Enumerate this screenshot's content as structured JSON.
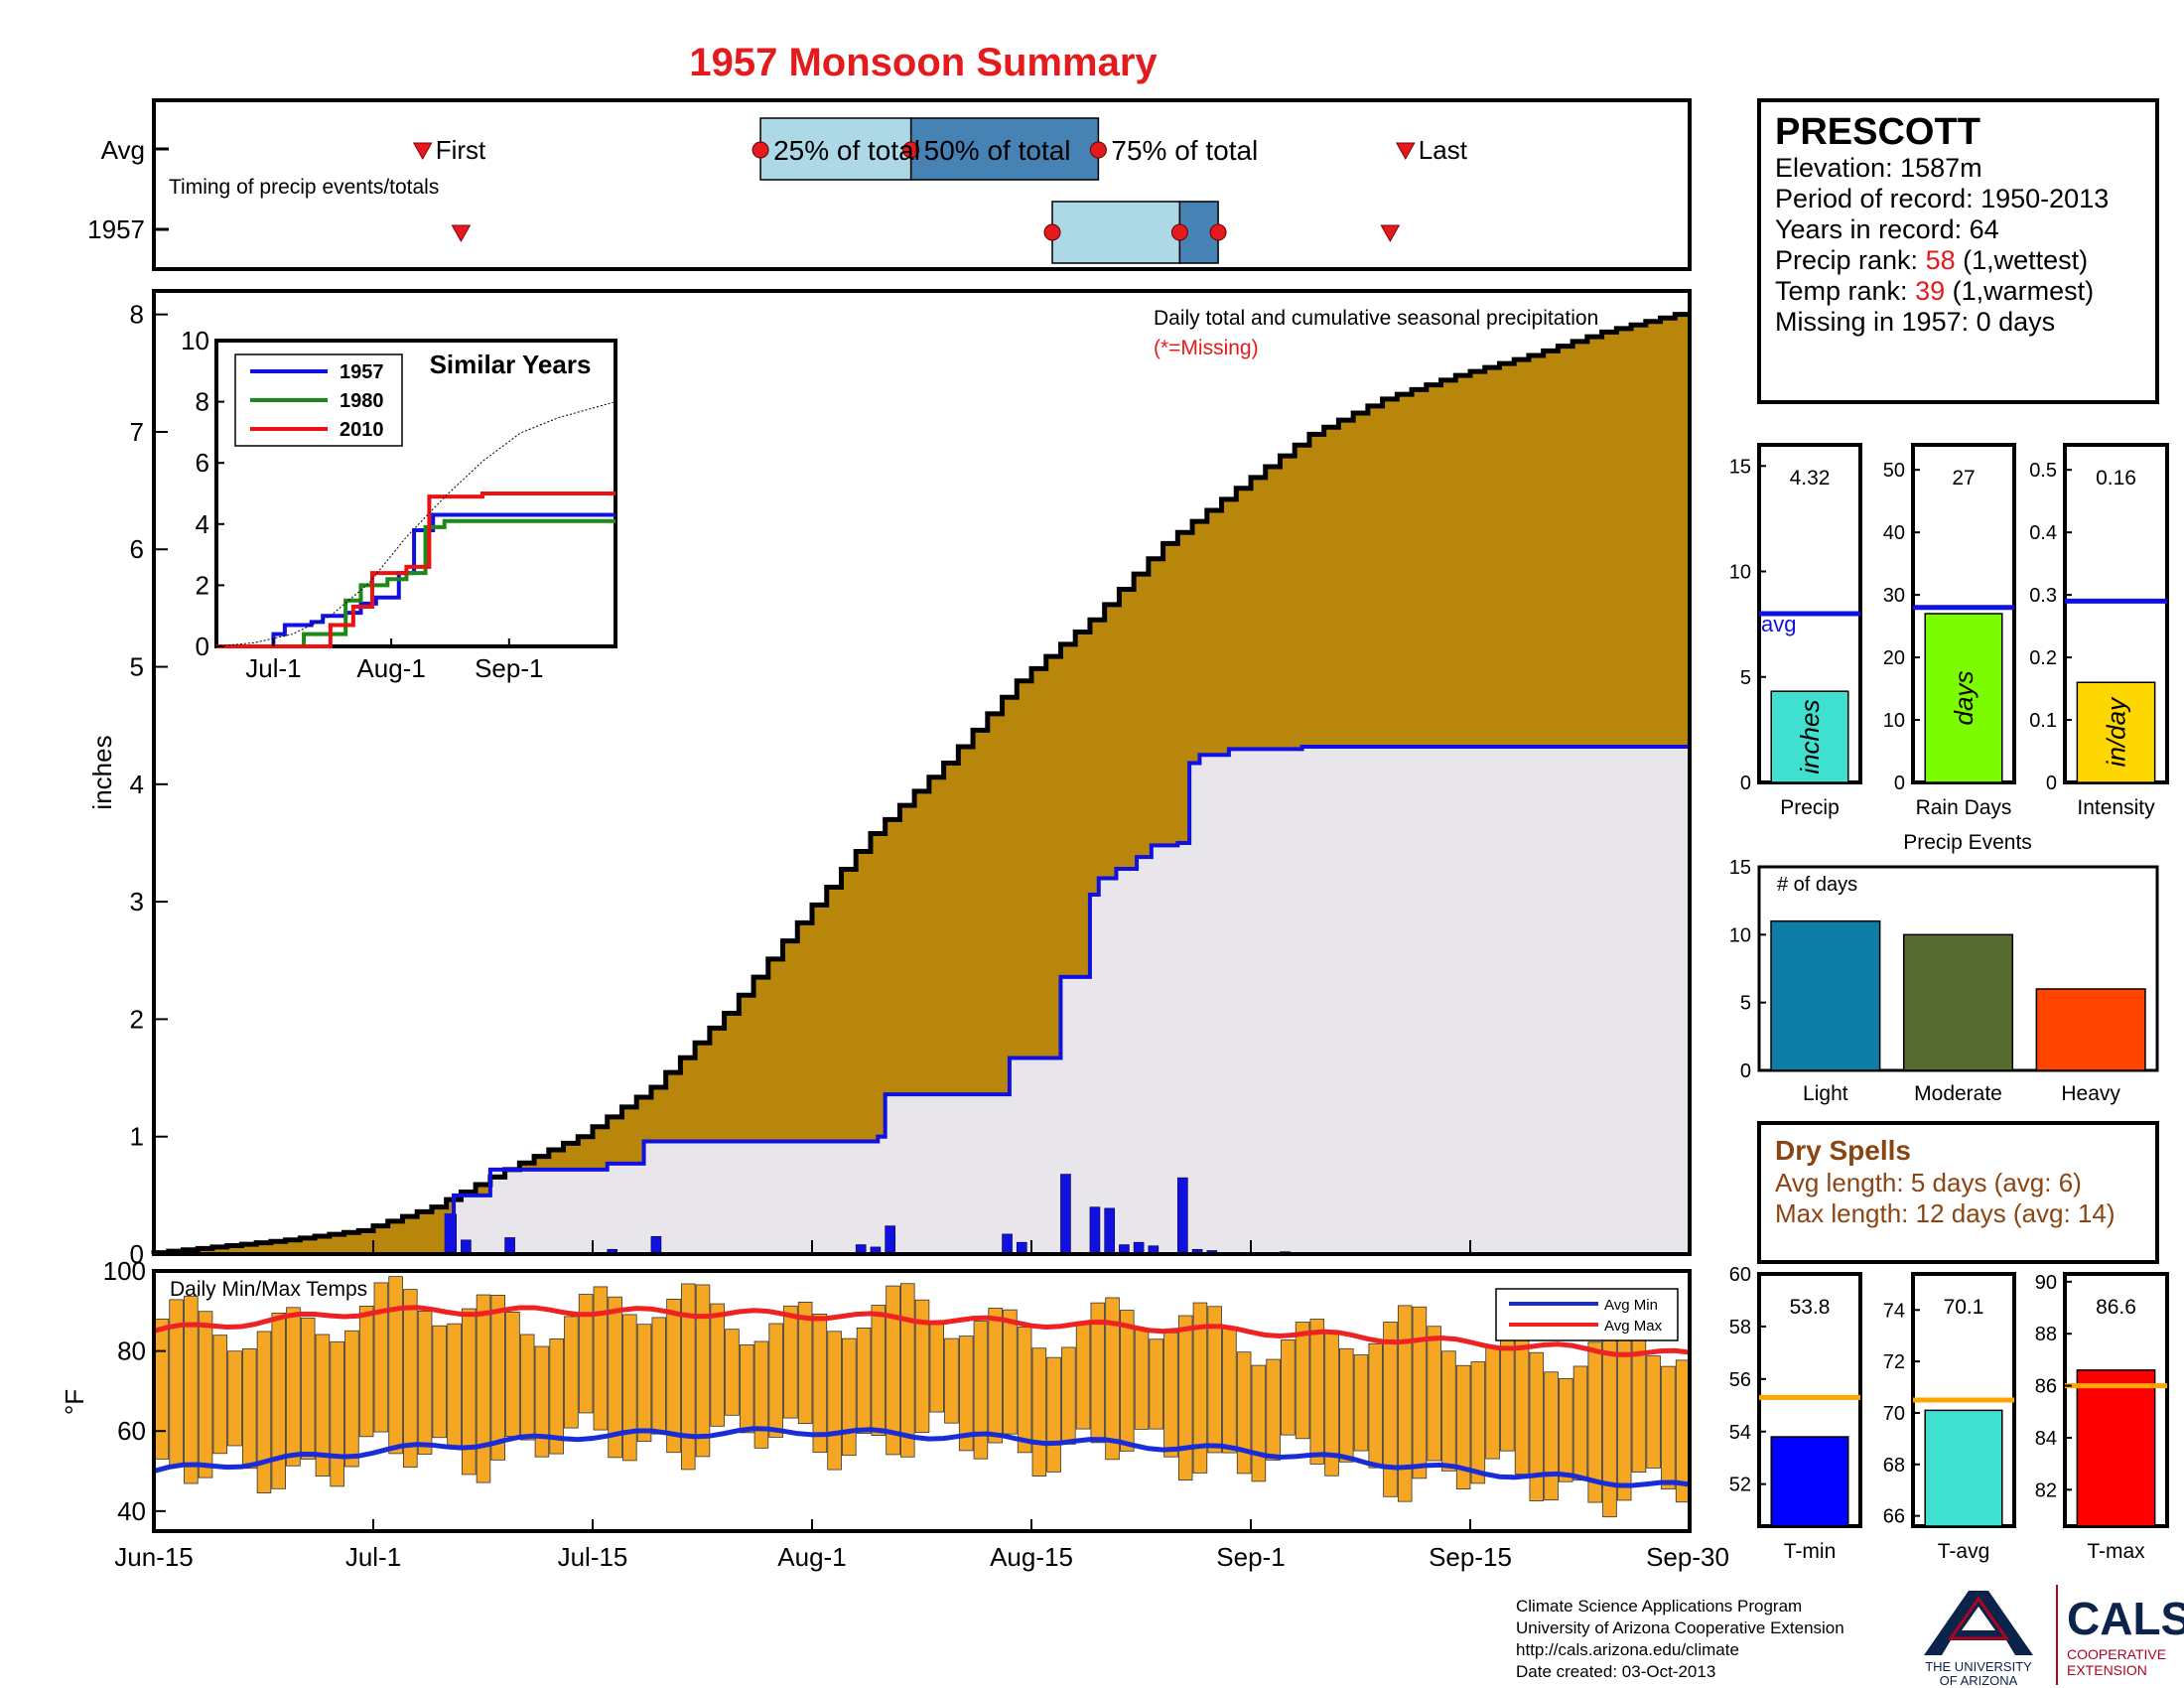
{
  "header": {
    "title": "1957 Monsoon Summary",
    "year": "1957"
  },
  "timing": {
    "row_avg_label": "Avg",
    "row_year_label": "1957",
    "caption": "Timing of precip events/totals",
    "first_label": "First",
    "last_label": "Last",
    "p25_label": "25% of total",
    "p50_label": "50% of total",
    "p75_label": "75% of total",
    "avg": {
      "first": 17.5,
      "p25": 39.5,
      "p50": 49.3,
      "p75": 61.5,
      "last": 81.5
    },
    "year": {
      "first": 20.0,
      "p25": 58.5,
      "p50": 66.8,
      "p75": 69.3,
      "last": 80.5
    }
  },
  "station": {
    "name": "PRESCOTT",
    "elevation": "Elevation: 1587m",
    "period": "Period of record: 1950-2013",
    "years": "Years in record: 64",
    "precip_rank_prefix": "Precip rank: ",
    "precip_rank_value": "58",
    "precip_rank_suffix": " (1,wettest)",
    "temp_rank_prefix": "Temp rank: ",
    "temp_rank_value": "39",
    "temp_rank_suffix": " (1,warmest)",
    "missing": "Missing in 1957: 0 days"
  },
  "dry_spells": {
    "title": "Dry Spells",
    "avg_length": "Avg length: 5 days (avg: 6)",
    "max_length": "Max length: 12 days (avg: 14)"
  },
  "footer": {
    "line1": "Climate Science Applications Program",
    "line2": "University of Arizona Cooperative Extension",
    "line3": "http://cals.arizona.edu/climate",
    "line4": " Date created: 03-Oct-2013",
    "ua_line1": "THE UNIVERSITY",
    "ua_line2": "OF ARIZONA",
    "cals_big": "CALS",
    "cals_line1": "COOPERATIVE",
    "cals_line2": "EXTENSION"
  },
  "colors": {
    "title_red": "#e41a1c",
    "avg_fill": "#b8860b",
    "obs_fill": "#e8e6ea",
    "obs_line": "#1010e0",
    "bar_orange": "#f5a623",
    "max_line": "#ee2222",
    "min_line": "#1a2bd8",
    "brown_text": "#8b4513",
    "ua_navy": "#0c234b",
    "ua_red": "#ab0520"
  },
  "chart_data": [
    {
      "type": "area",
      "id": "main-precip",
      "title": "Daily total and cumulative seasonal precipitation",
      "subtitle": "(*=Missing)",
      "ylabel": "inches",
      "ylim": [
        0,
        8.2
      ],
      "yticks": [
        0,
        1,
        2,
        3,
        4,
        5,
        6,
        7,
        8
      ],
      "x_days": [
        0,
        15,
        30,
        45,
        60,
        75,
        90,
        105
      ],
      "xtick_labels": [
        "Jun-15",
        "Jul-1",
        "Jul-15",
        "Aug-1",
        "Aug-15",
        "Sep-1",
        "Sep-15",
        "Sep-30"
      ],
      "avg_cumulative": {
        "name": "avg",
        "x": [
          0,
          5,
          10,
          15,
          20,
          25,
          30,
          35,
          40,
          45,
          50,
          55,
          60,
          65,
          70,
          75,
          80,
          85,
          90,
          95,
          100,
          105
        ],
        "y": [
          0.0,
          0.06,
          0.12,
          0.2,
          0.4,
          0.72,
          1.0,
          1.42,
          2.05,
          2.82,
          3.58,
          4.18,
          4.88,
          5.4,
          6.05,
          6.52,
          6.98,
          7.28,
          7.48,
          7.65,
          7.85,
          8.0
        ]
      },
      "year_cumulative": {
        "name": "1957",
        "steps": [
          [
            0,
            0.0
          ],
          [
            20,
            0.33
          ],
          [
            20.5,
            0.5
          ],
          [
            23,
            0.72
          ],
          [
            31,
            0.77
          ],
          [
            33.5,
            0.96
          ],
          [
            48.5,
            0.96
          ],
          [
            49.5,
            1.0
          ],
          [
            50,
            1.36
          ],
          [
            57,
            1.36
          ],
          [
            58.5,
            1.67
          ],
          [
            61.5,
            1.67
          ],
          [
            62,
            2.36
          ],
          [
            63.5,
            2.36
          ],
          [
            64,
            3.06
          ],
          [
            64.6,
            3.2
          ],
          [
            65.8,
            3.28
          ],
          [
            67.2,
            3.38
          ],
          [
            68.2,
            3.48
          ],
          [
            70,
            3.5
          ],
          [
            70.8,
            4.18
          ],
          [
            71.5,
            4.25
          ],
          [
            73.5,
            4.3
          ],
          [
            78.5,
            4.3
          ],
          [
            78.5,
            4.32
          ],
          [
            105,
            4.32
          ]
        ]
      },
      "daily_bars": {
        "x": [
          20,
          21,
          24,
          31,
          34,
          48,
          49,
          50,
          58,
          59,
          62,
          64,
          65,
          66,
          67,
          68,
          70,
          71,
          72,
          77
        ],
        "y": [
          0.34,
          0.12,
          0.14,
          0.04,
          0.15,
          0.08,
          0.06,
          0.24,
          0.17,
          0.1,
          0.68,
          0.4,
          0.39,
          0.08,
          0.1,
          0.07,
          0.65,
          0.04,
          0.03,
          0.02
        ]
      },
      "inset": {
        "title": "Similar Years",
        "ylim": [
          0,
          10
        ],
        "yticks": [
          0,
          2,
          4,
          6,
          8,
          10
        ],
        "xtick_labels": [
          "Jul-1",
          "Aug-1",
          "Sep-1"
        ],
        "xtick_days": [
          15,
          46,
          77
        ],
        "legend": [
          "1957",
          "1980",
          "2010"
        ],
        "series": [
          {
            "name": "1957",
            "color": "#1010e0",
            "steps": [
              [
                0,
                0
              ],
              [
                14,
                0.0
              ],
              [
                15,
                0.4
              ],
              [
                18,
                0.7
              ],
              [
                25,
                0.8
              ],
              [
                28,
                1.0
              ],
              [
                34,
                1.1
              ],
              [
                38,
                1.4
              ],
              [
                42,
                1.6
              ],
              [
                48,
                2.4
              ],
              [
                52,
                3.8
              ],
              [
                57,
                4.3
              ],
              [
                70,
                4.3
              ],
              [
                105,
                4.3
              ]
            ]
          },
          {
            "name": "1980",
            "color": "#1a8a1a",
            "steps": [
              [
                0,
                0
              ],
              [
                23,
                0.4
              ],
              [
                32,
                0.4
              ],
              [
                34,
                1.5
              ],
              [
                38,
                2.0
              ],
              [
                45,
                2.2
              ],
              [
                50,
                2.4
              ],
              [
                55,
                3.9
              ],
              [
                60,
                4.1
              ],
              [
                105,
                4.1
              ]
            ]
          },
          {
            "name": "2010",
            "color": "#ee1111",
            "steps": [
              [
                0,
                0
              ],
              [
                30,
                0.7
              ],
              [
                36,
                1.3
              ],
              [
                41,
                2.4
              ],
              [
                50,
                2.6
              ],
              [
                56,
                4.9
              ],
              [
                70,
                5.0
              ],
              [
                105,
                5.0
              ]
            ]
          },
          {
            "name": "avg",
            "color": "#000000",
            "x": [
              0,
              10,
              20,
              30,
              40,
              50,
              60,
              70,
              80,
              90,
              105
            ],
            "y": [
              0,
              0.12,
              0.4,
              1.0,
              2.05,
              3.58,
              4.88,
              6.05,
              6.98,
              7.48,
              8.0
            ]
          }
        ]
      }
    },
    {
      "type": "bar",
      "id": "temps",
      "title": "Daily Min/Max Temps",
      "ylabel": "°F",
      "ylim": [
        35,
        100
      ],
      "yticks": [
        40,
        60,
        80,
        100
      ],
      "legend": [
        "Avg Min",
        "Avg Max"
      ],
      "avg_min": {
        "x": [
          0,
          15,
          30,
          45,
          60,
          75,
          90,
          105
        ],
        "y": [
          50,
          55,
          59,
          60,
          58,
          55,
          50,
          46
        ]
      },
      "avg_max": {
        "x": [
          0,
          15,
          30,
          45,
          60,
          75,
          90,
          105
        ],
        "y": [
          85,
          90,
          90,
          89,
          87,
          85,
          82,
          79
        ]
      }
    },
    {
      "type": "bar",
      "id": "precip-totals",
      "categories": [
        "Precip"
      ],
      "values": [
        4.32
      ],
      "value_label": "4.32",
      "bar_label": "inches",
      "avg": 8.0,
      "avg_label": "avg",
      "ylim": [
        0,
        16
      ],
      "yticks": [
        0,
        5,
        10,
        15
      ],
      "color": "#40e0d0"
    },
    {
      "type": "bar",
      "id": "rain-days",
      "categories": [
        "Rain Days"
      ],
      "values": [
        27
      ],
      "value_label": "27",
      "bar_label": "days",
      "avg": 28,
      "ylim": [
        0,
        54
      ],
      "yticks": [
        0,
        10,
        20,
        30,
        40,
        50
      ],
      "color": "#7cfc00"
    },
    {
      "type": "bar",
      "id": "intensity",
      "categories": [
        "Intensity"
      ],
      "values": [
        0.16
      ],
      "value_label": "0.16",
      "bar_label": "in/day",
      "avg": 0.29,
      "ylim": [
        0,
        0.54
      ],
      "yticks": [
        0,
        0.1,
        0.2,
        0.3,
        0.4,
        0.5
      ],
      "color": "#ffd700"
    },
    {
      "type": "bar",
      "id": "precip-events",
      "title": "Precip Events",
      "ylabel": "# of days",
      "categories": [
        "Light",
        "Moderate",
        "Heavy"
      ],
      "values": [
        11,
        10,
        6
      ],
      "colors": [
        "#0e7ea6",
        "#556b2f",
        "#ff4500"
      ],
      "ylim": [
        0,
        15
      ],
      "yticks": [
        0,
        5,
        10,
        15
      ]
    },
    {
      "type": "bar",
      "id": "t-min",
      "categories": [
        "T-min"
      ],
      "values": [
        53.8
      ],
      "value_label": "53.8",
      "avg": 55.3,
      "ylim": [
        50.4,
        60
      ],
      "yticks": [
        52,
        54,
        56,
        58,
        60
      ],
      "color": "#0000ff"
    },
    {
      "type": "bar",
      "id": "t-avg",
      "categories": [
        "T-avg"
      ],
      "values": [
        70.1
      ],
      "value_label": "70.1",
      "avg": 70.5,
      "ylim": [
        65.6,
        75.4
      ],
      "yticks": [
        66,
        68,
        70,
        72,
        74
      ],
      "color": "#40e0d0"
    },
    {
      "type": "bar",
      "id": "t-max",
      "categories": [
        "T-max"
      ],
      "values": [
        86.6
      ],
      "value_label": "86.6",
      "avg": 86.0,
      "ylim": [
        80.6,
        90.3
      ],
      "yticks": [
        82,
        84,
        86,
        88,
        90
      ],
      "color": "#ff0000"
    }
  ]
}
